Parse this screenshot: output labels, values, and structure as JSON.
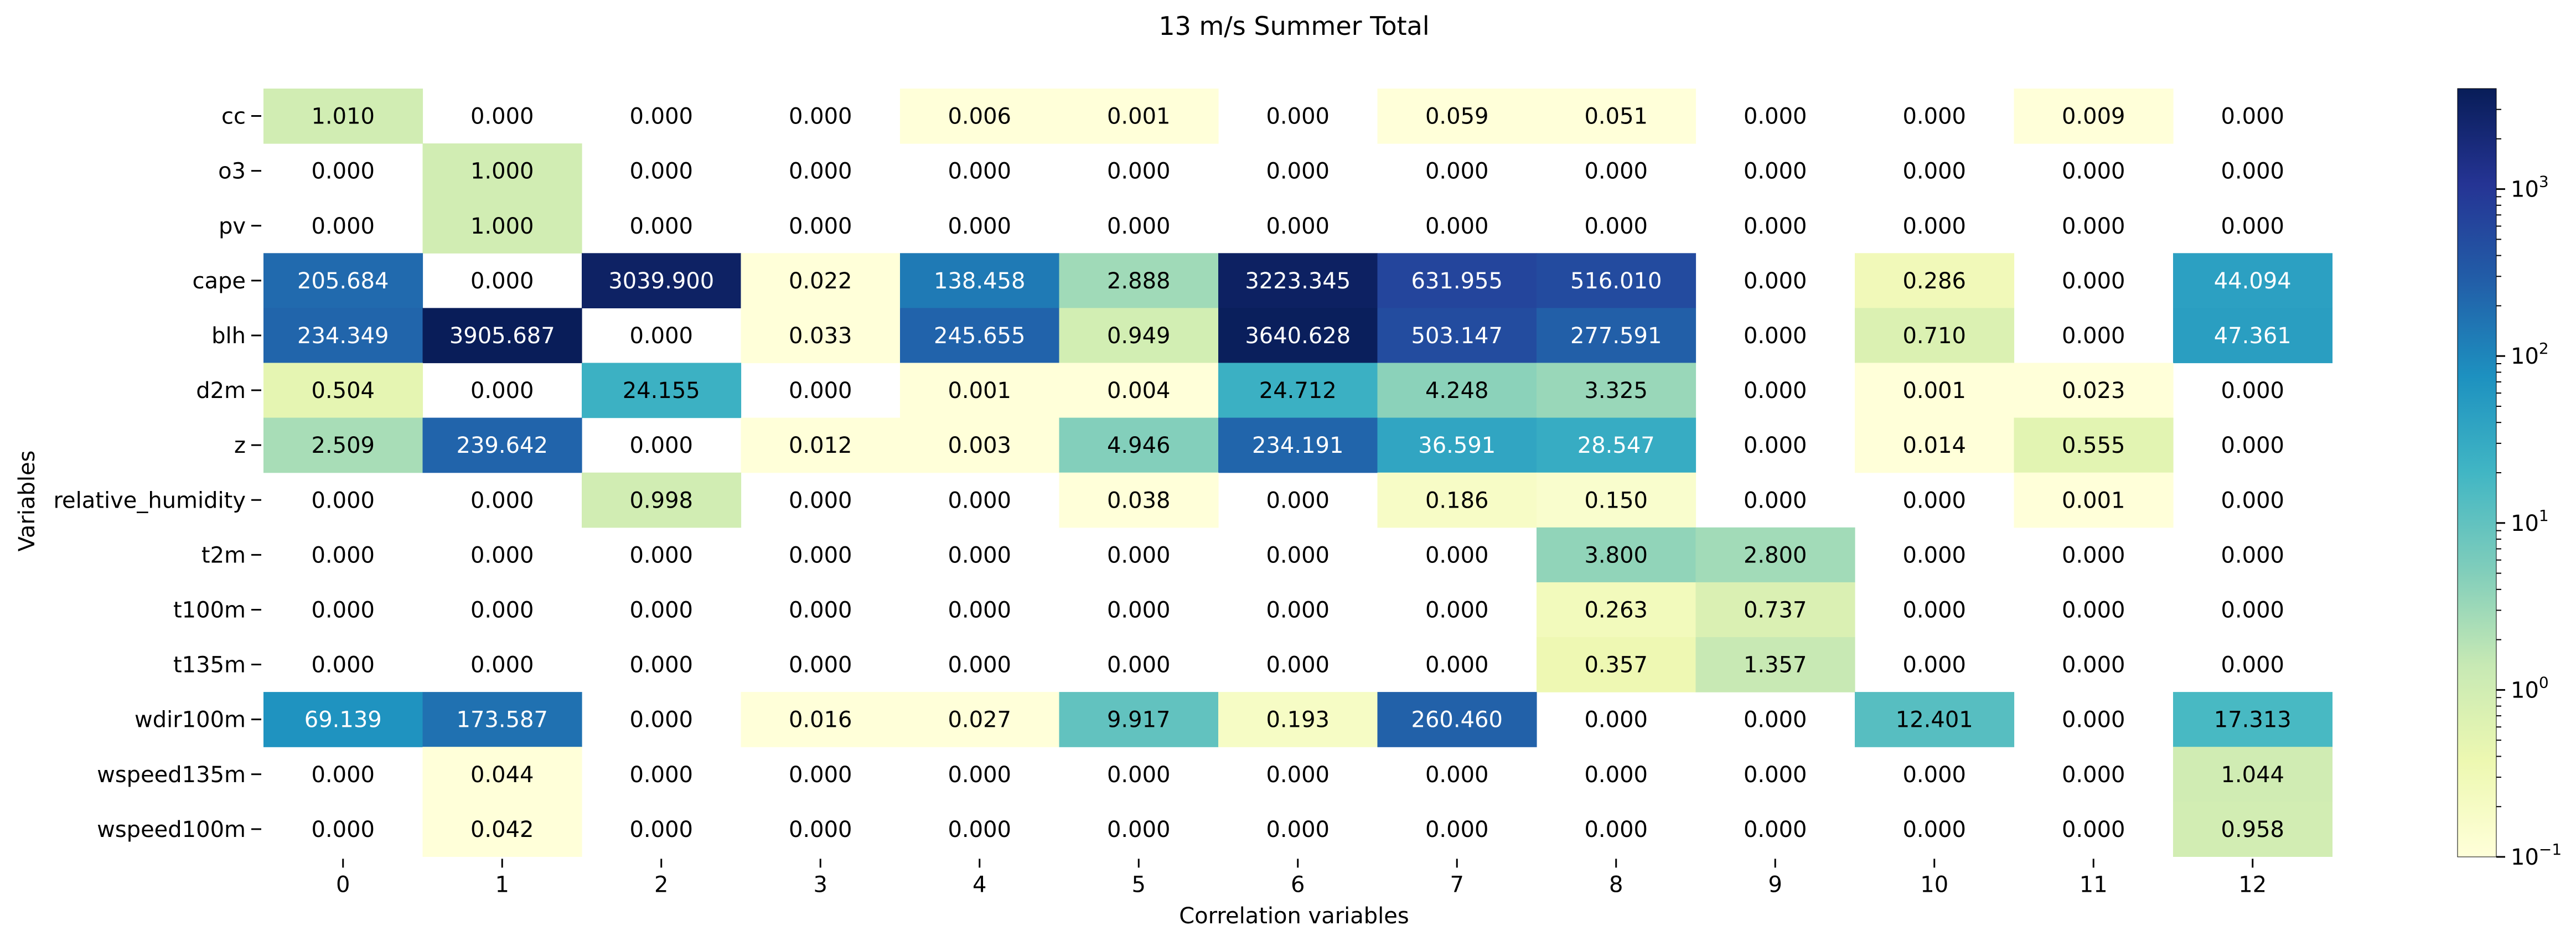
{
  "chart_data": {
    "type": "heatmap",
    "title": "13 m/s Summer Total",
    "xlabel": "Correlation variables",
    "ylabel": "Variables",
    "x_categories": [
      "0",
      "1",
      "2",
      "3",
      "4",
      "5",
      "6",
      "7",
      "8",
      "9",
      "10",
      "11",
      "12"
    ],
    "y_categories": [
      "cc",
      "o3",
      "pv",
      "cape",
      "blh",
      "d2m",
      "z",
      "relative_humidity",
      "t2m",
      "t100m",
      "t135m",
      "wdir100m",
      "wspeed135m",
      "wspeed100m"
    ],
    "values": [
      [
        1.01,
        0.0,
        0.0,
        0.0,
        0.006,
        0.001,
        0.0,
        0.059,
        0.051,
        0.0,
        0.0,
        0.009,
        0.0
      ],
      [
        0.0,
        1.0,
        0.0,
        0.0,
        0.0,
        0.0,
        0.0,
        0.0,
        0.0,
        0.0,
        0.0,
        0.0,
        0.0
      ],
      [
        0.0,
        1.0,
        0.0,
        0.0,
        0.0,
        0.0,
        0.0,
        0.0,
        0.0,
        0.0,
        0.0,
        0.0,
        0.0
      ],
      [
        205.684,
        0.0,
        3039.9,
        0.022,
        138.458,
        2.888,
        3223.345,
        631.955,
        516.01,
        0.0,
        0.286,
        0.0,
        44.094
      ],
      [
        234.349,
        3905.687,
        0.0,
        0.033,
        245.655,
        0.949,
        3640.628,
        503.147,
        277.591,
        0.0,
        0.71,
        0.0,
        47.361
      ],
      [
        0.504,
        0.0,
        24.155,
        0.0,
        0.001,
        0.004,
        24.712,
        4.248,
        3.325,
        0.0,
        0.001,
        0.023,
        0.0
      ],
      [
        2.509,
        239.642,
        0.0,
        0.012,
        0.003,
        4.946,
        234.191,
        36.591,
        28.547,
        0.0,
        0.014,
        0.555,
        0.0
      ],
      [
        0.0,
        0.0,
        0.998,
        0.0,
        0.0,
        0.038,
        0.0,
        0.186,
        0.15,
        0.0,
        0.0,
        0.001,
        0.0
      ],
      [
        0.0,
        0.0,
        0.0,
        0.0,
        0.0,
        0.0,
        0.0,
        0.0,
        3.8,
        2.8,
        0.0,
        0.0,
        0.0
      ],
      [
        0.0,
        0.0,
        0.0,
        0.0,
        0.0,
        0.0,
        0.0,
        0.0,
        0.263,
        0.737,
        0.0,
        0.0,
        0.0
      ],
      [
        0.0,
        0.0,
        0.0,
        0.0,
        0.0,
        0.0,
        0.0,
        0.0,
        0.357,
        1.357,
        0.0,
        0.0,
        0.0
      ],
      [
        69.139,
        173.587,
        0.0,
        0.016,
        0.027,
        9.917,
        0.193,
        260.46,
        0.0,
        0.0,
        12.401,
        0.0,
        17.313
      ],
      [
        0.0,
        0.044,
        0.0,
        0.0,
        0.0,
        0.0,
        0.0,
        0.0,
        0.0,
        0.0,
        0.0,
        0.0,
        1.044
      ],
      [
        0.0,
        0.042,
        0.0,
        0.0,
        0.0,
        0.0,
        0.0,
        0.0,
        0.0,
        0.0,
        0.0,
        0.0,
        0.958
      ]
    ],
    "value_format": "3 decimals",
    "colormap": "YlGnBu",
    "colormap_stops": [
      "#ffffd9",
      "#edf8b1",
      "#c7e9b4",
      "#7fcdbb",
      "#41b6c4",
      "#1d91c0",
      "#225ea8",
      "#253494",
      "#081d58"
    ],
    "color_scale": "log",
    "color_range": [
      0.1,
      4000
    ],
    "zero_cells": "blank (masked)",
    "light_text_color": "#ffffff",
    "dark_text_color": "#000000",
    "colorbar": {
      "ticks": [
        {
          "base": "10",
          "exp": "−1",
          "value": 0.1
        },
        {
          "base": "10",
          "exp": "0",
          "value": 1
        },
        {
          "base": "10",
          "exp": "1",
          "value": 10
        },
        {
          "base": "10",
          "exp": "2",
          "value": 100
        },
        {
          "base": "10",
          "exp": "3",
          "value": 1000
        }
      ],
      "position": "right"
    }
  }
}
